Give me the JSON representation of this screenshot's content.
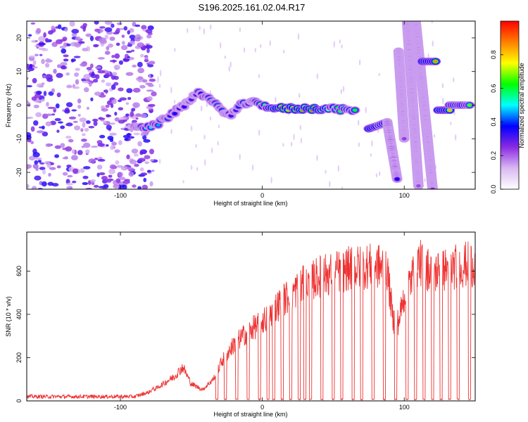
{
  "title": "S196.2025.161.02.04.R17",
  "chart_data": [
    {
      "type": "heatmap",
      "name": "spectrogram",
      "xlabel": "Height of straight line (km)",
      "ylabel": "Frequency (Hz)",
      "xlim": [
        -166,
        150
      ],
      "ylim": [
        -25,
        25
      ],
      "xticks": [
        -100,
        0,
        100
      ],
      "yticks": [
        -20,
        -10,
        0,
        10,
        20
      ],
      "colorbar": {
        "label": "Normalized spectral amplitude",
        "range": [
          0,
          1
        ],
        "ticks": [
          "0.0",
          "0.2",
          "0.4",
          "0.6",
          "0.8"
        ],
        "colors": [
          "#ffffff",
          "#d9b8f2",
          "#8a2be2",
          "#0000ff",
          "#00ffff",
          "#00ff00",
          "#ffff00",
          "#ff7f00",
          "#ff0000"
        ]
      },
      "noise_region": {
        "x": [
          -166,
          -82
        ],
        "level": 0.3
      },
      "track": [
        {
          "x": -90,
          "f": -6,
          "a": 0.35
        },
        {
          "x": -82,
          "f": -6.5,
          "a": 0.5
        },
        {
          "x": -75,
          "f": -6,
          "a": 0.45
        },
        {
          "x": -65,
          "f": -3,
          "a": 0.4
        },
        {
          "x": -55,
          "f": 0,
          "a": 0.35
        },
        {
          "x": -45,
          "f": 4,
          "a": 0.4
        },
        {
          "x": -38,
          "f": 2,
          "a": 0.35
        },
        {
          "x": -30,
          "f": -1,
          "a": 0.4
        },
        {
          "x": -22,
          "f": -3,
          "a": 0.35
        },
        {
          "x": -15,
          "f": 0,
          "a": 0.45
        },
        {
          "x": -8,
          "f": 1,
          "a": 0.4
        },
        {
          "x": 0,
          "f": 0,
          "a": 0.6
        },
        {
          "x": 10,
          "f": -1,
          "a": 0.8
        },
        {
          "x": 20,
          "f": -1,
          "a": 0.85
        },
        {
          "x": 30,
          "f": -1,
          "a": 0.8
        },
        {
          "x": 40,
          "f": -1,
          "a": 0.85
        },
        {
          "x": 50,
          "f": -1,
          "a": 0.6
        },
        {
          "x": 60,
          "f": -1.5,
          "a": 0.65
        },
        {
          "x": 67,
          "f": -1.5,
          "a": 0.55
        }
      ],
      "segments": [
        {
          "x": [
            75,
            82
          ],
          "f": [
            -7,
            -6
          ],
          "a": 0.8
        },
        {
          "x": [
            82,
            88
          ],
          "f": [
            -6,
            -5
          ],
          "a": 0.7
        },
        {
          "x": [
            88,
            95
          ],
          "f": [
            -5,
            -22
          ],
          "a": 0.35
        },
        {
          "x": [
            96,
            100
          ],
          "f": [
            16,
            -10
          ],
          "a": 0.25
        },
        {
          "x": [
            102,
            110
          ],
          "f": [
            25,
            -24
          ],
          "a": 0.25
        },
        {
          "x": [
            108,
            120
          ],
          "f": [
            25,
            -25
          ],
          "a": 0.25
        },
        {
          "x": [
            113,
            122
          ],
          "f": [
            13,
            13
          ],
          "a": 0.85
        },
        {
          "x": [
            124,
            132
          ],
          "f": [
            -1.5,
            -1.5
          ],
          "a": 0.85
        },
        {
          "x": [
            132,
            146
          ],
          "f": [
            0,
            0
          ],
          "a": 0.7
        }
      ]
    },
    {
      "type": "line",
      "name": "snr",
      "xlabel": "Height of straight line (km)",
      "ylabel": "SNR (10 * v/v)",
      "xlim": [
        -166,
        150
      ],
      "ylim": [
        0,
        780
      ],
      "xticks": [
        -100,
        0,
        100
      ],
      "yticks": [
        0,
        200,
        400,
        600
      ],
      "color": "#ee3333",
      "envelope": [
        [
          -166,
          20
        ],
        [
          -90,
          20
        ],
        [
          -80,
          40
        ],
        [
          -72,
          80
        ],
        [
          -62,
          130
        ],
        [
          -56,
          180
        ],
        [
          -50,
          90
        ],
        [
          -42,
          60
        ],
        [
          -34,
          120
        ],
        [
          -28,
          220
        ],
        [
          -20,
          300
        ],
        [
          -10,
          370
        ],
        [
          0,
          420
        ],
        [
          10,
          500
        ],
        [
          20,
          570
        ],
        [
          30,
          620
        ],
        [
          40,
          660
        ],
        [
          50,
          680
        ],
        [
          60,
          700
        ],
        [
          70,
          710
        ],
        [
          80,
          720
        ],
        [
          88,
          700
        ],
        [
          92,
          430
        ],
        [
          96,
          420
        ],
        [
          100,
          560
        ],
        [
          110,
          740
        ],
        [
          120,
          680
        ],
        [
          130,
          700
        ],
        [
          140,
          720
        ],
        [
          150,
          730
        ]
      ],
      "dropouts": [
        -32,
        -26,
        -18,
        -10,
        -2,
        4,
        8,
        14,
        20,
        26,
        30,
        34,
        42,
        50,
        56,
        64,
        70,
        78,
        86,
        94,
        102,
        108,
        114,
        120,
        126,
        132,
        138,
        146
      ]
    }
  ]
}
